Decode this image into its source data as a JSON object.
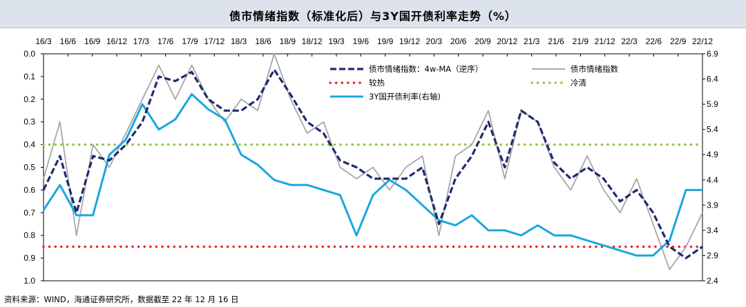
{
  "chart_data": {
    "type": "line",
    "title": "债市情绪指数（标准化后）与3Y国开债利率走势（%）",
    "x_tick_labels": [
      "16/3",
      "16/6",
      "16/9",
      "16/12",
      "17/3",
      "17/6",
      "17/9",
      "17/12",
      "18/3",
      "18/6",
      "18/9",
      "18/12",
      "19/3",
      "19/6",
      "19/9",
      "19/12",
      "20/3",
      "20/6",
      "20/9",
      "20/12",
      "21/3",
      "21/6",
      "21/9",
      "21/12",
      "22/3",
      "22/6",
      "22/9",
      "22/12"
    ],
    "left_axis": {
      "range": [
        0.0,
        1.0
      ],
      "inverted": true,
      "ticks": [
        "0.0",
        "0.1",
        "0.2",
        "0.3",
        "0.4",
        "0.5",
        "0.6",
        "0.7",
        "0.8",
        "0.9",
        "1.0"
      ]
    },
    "right_axis": {
      "range": [
        2.4,
        6.9
      ],
      "ticks": [
        "6.9",
        "6.4",
        "5.9",
        "5.4",
        "4.9",
        "4.4",
        "3.9",
        "3.4",
        "2.9",
        "2.4"
      ]
    },
    "hlines": [
      {
        "name": "较热",
        "value": 0.85,
        "color": "#e8262b"
      },
      {
        "name": "冷清",
        "value": 0.4,
        "color": "#8ec63f"
      }
    ],
    "series": [
      {
        "name": "债市情绪指数：4w-MA（逆序）",
        "axis": "left",
        "color": "#1d2a6e",
        "style": "dashed",
        "values": [
          0.6,
          0.45,
          0.7,
          0.45,
          0.47,
          0.4,
          0.3,
          0.1,
          0.12,
          0.08,
          0.2,
          0.25,
          0.25,
          0.2,
          0.07,
          0.18,
          0.3,
          0.35,
          0.47,
          0.5,
          0.55,
          0.55,
          0.55,
          0.5,
          0.75,
          0.55,
          0.45,
          0.3,
          0.5,
          0.25,
          0.3,
          0.48,
          0.55,
          0.5,
          0.55,
          0.65,
          0.6,
          0.7,
          0.85,
          0.9,
          0.85
        ]
      },
      {
        "name": "债市情绪指数",
        "axis": "left",
        "color": "#a6a6a6",
        "style": "solid",
        "values": [
          0.55,
          0.3,
          0.8,
          0.4,
          0.5,
          0.35,
          0.2,
          0.05,
          0.2,
          0.05,
          0.2,
          0.3,
          0.2,
          0.25,
          0.0,
          0.2,
          0.35,
          0.3,
          0.5,
          0.55,
          0.5,
          0.6,
          0.5,
          0.45,
          0.8,
          0.45,
          0.4,
          0.25,
          0.55,
          0.25,
          0.3,
          0.5,
          0.6,
          0.45,
          0.6,
          0.7,
          0.55,
          0.75,
          0.95,
          0.85,
          0.7
        ]
      },
      {
        "name": "3Y国开债利率(右轴)",
        "axis": "right",
        "color": "#1aa6e0",
        "style": "solid",
        "values": [
          3.8,
          4.3,
          3.7,
          3.7,
          4.9,
          5.2,
          5.9,
          5.4,
          5.6,
          6.1,
          5.8,
          5.6,
          4.9,
          4.7,
          4.4,
          4.3,
          4.3,
          4.2,
          4.1,
          3.3,
          4.1,
          4.4,
          4.2,
          3.9,
          3.6,
          3.5,
          3.7,
          3.4,
          3.4,
          3.3,
          3.5,
          3.3,
          3.3,
          3.2,
          3.1,
          3.0,
          2.9,
          2.9,
          3.2,
          4.2,
          4.2
        ]
      }
    ],
    "legend": [
      {
        "label": "债市情绪指数：4w-MA（逆序）"
      },
      {
        "label": "债市情绪指数"
      },
      {
        "label": "较热"
      },
      {
        "label": "冷清"
      },
      {
        "label": "3Y国开债利率(右轴)"
      }
    ]
  },
  "footer": "资料来源：WIND，海通证券研究所，数据截至 22 年 12 月 16 日"
}
